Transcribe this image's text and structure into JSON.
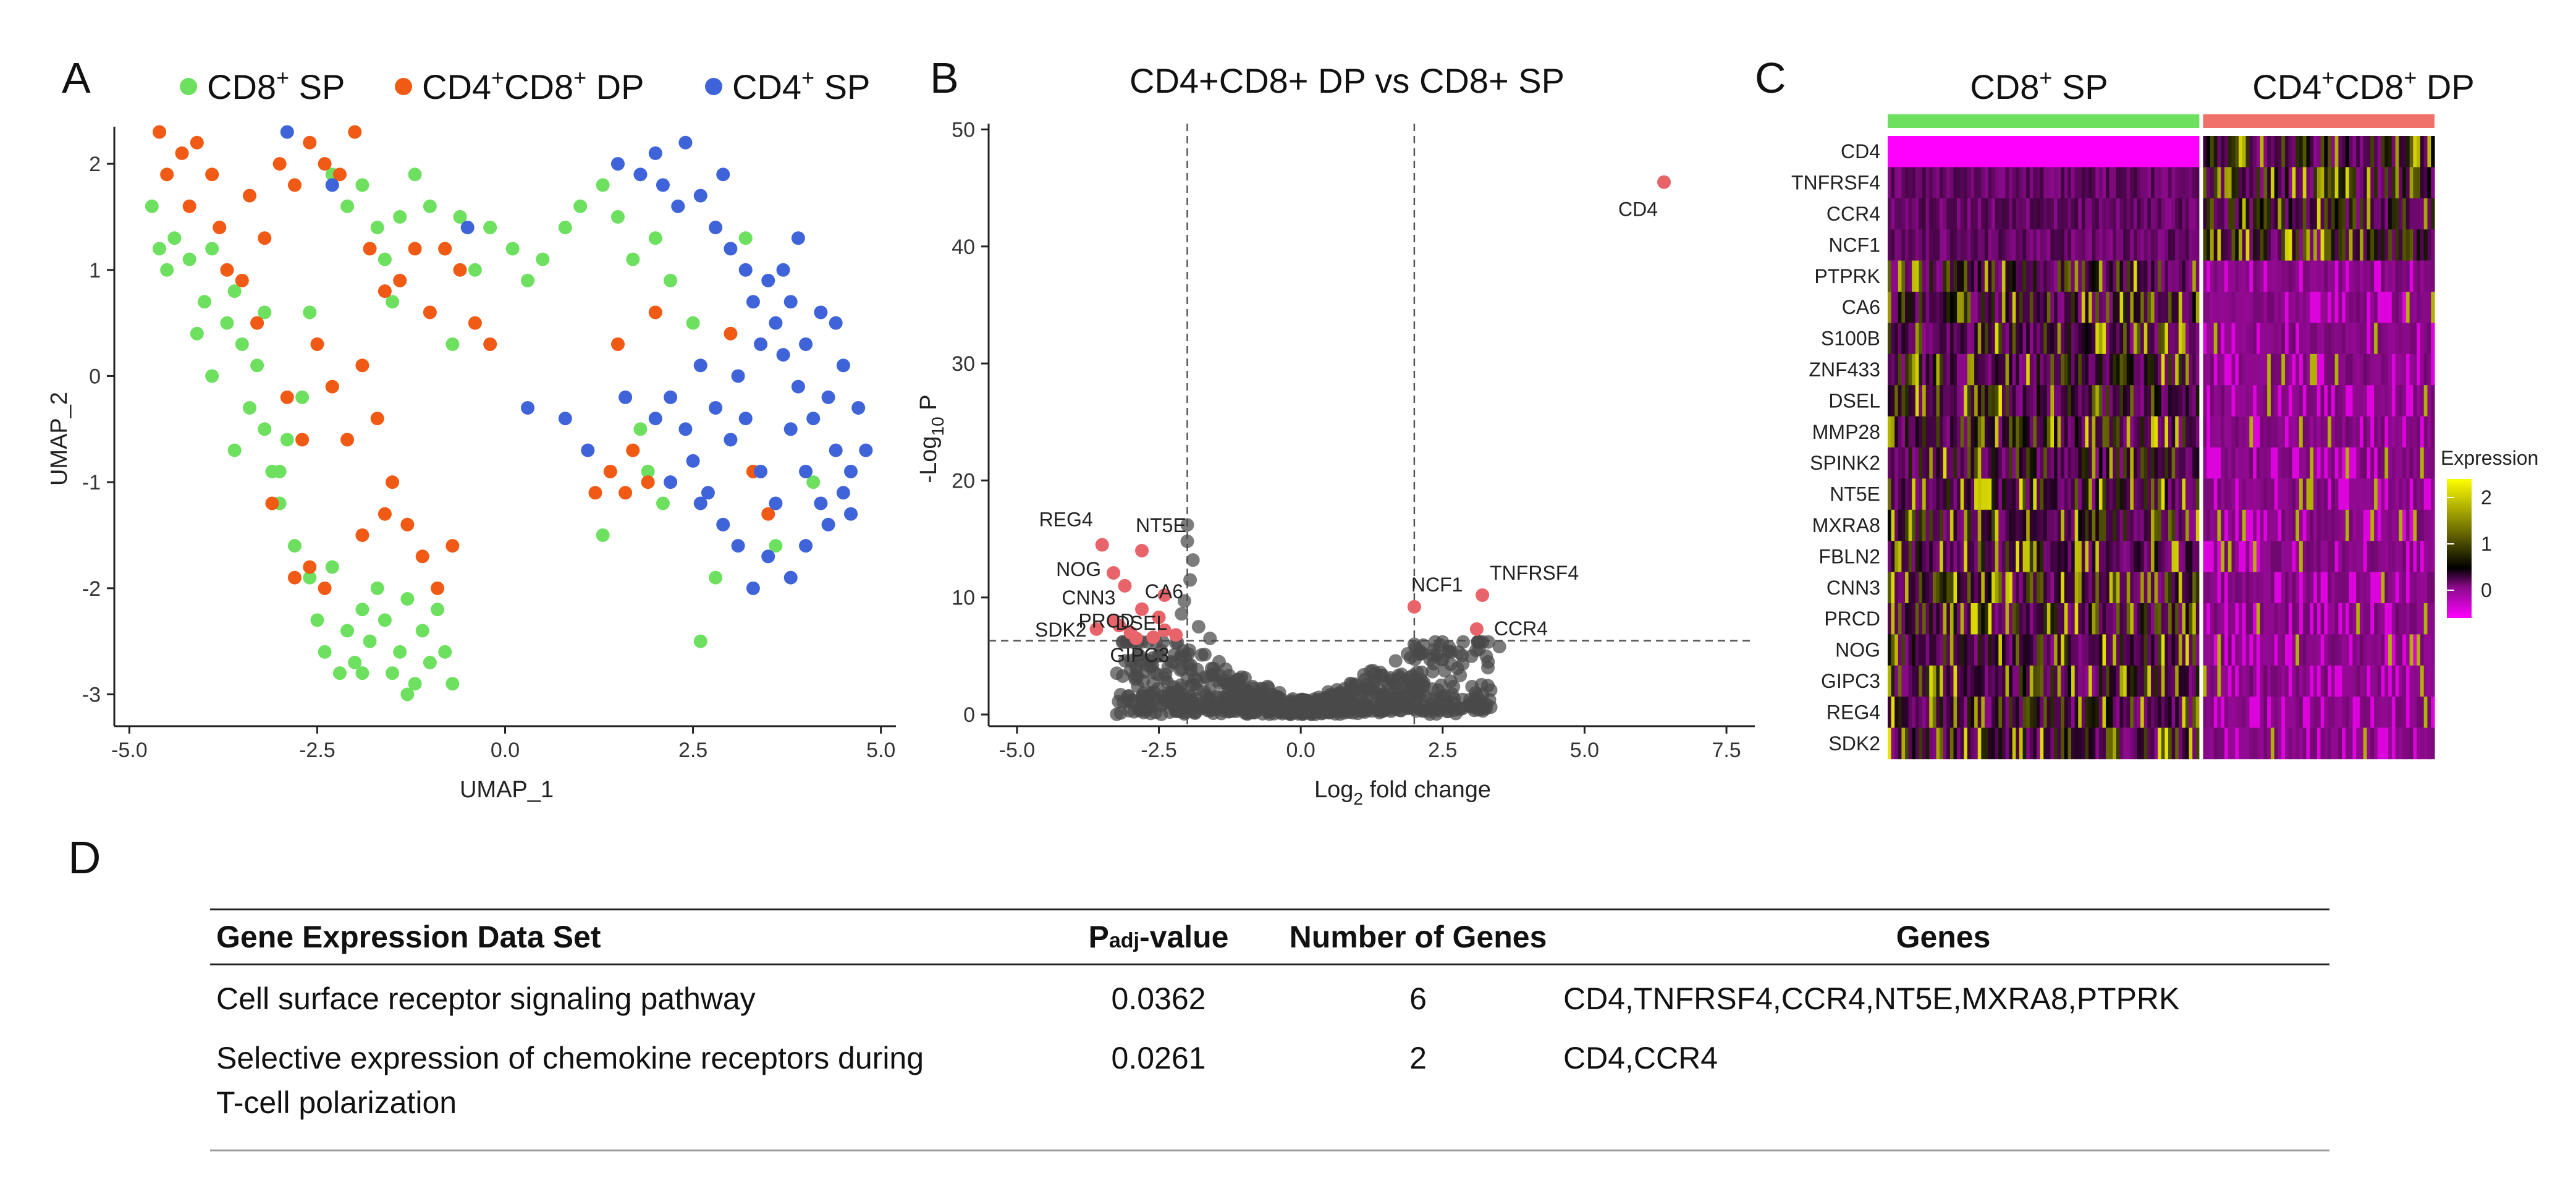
{
  "colors": {
    "cd8": "#6ee060",
    "dp": "#f05a14",
    "cd4": "#3f63d8",
    "sig": "#e8646a",
    "ns": "#4a4a4a"
  },
  "chart_data": [
    {
      "panel": "A",
      "type": "scatter",
      "title": "",
      "xlabel": "UMAP_1",
      "ylabel": "UMAP_2",
      "xlim": [
        -5.2,
        5.2
      ],
      "ylim": [
        -3.3,
        2.35
      ],
      "xticks": [
        "-5.0",
        "-2.5",
        "0.0",
        "2.5",
        "5.0"
      ],
      "xtick_values": [
        -5.0,
        -2.5,
        0.0,
        2.5,
        5.0
      ],
      "yticks": [
        "2",
        "1",
        "0",
        "-1",
        "-2",
        "-3"
      ],
      "ytick_values": [
        2,
        1,
        0,
        -1,
        -2,
        -3
      ],
      "legend": [
        {
          "base": "CD8",
          "sup": "+",
          "tail": " SP",
          "color": "#6ee060"
        },
        {
          "base": "CD4",
          "sup": "+",
          "mid": "CD8",
          "sup2": "+",
          "tail": " DP",
          "color": "#f05a14"
        },
        {
          "base": "CD4",
          "sup": "+",
          "tail": " SP",
          "color": "#3f63d8"
        }
      ],
      "series": [
        {
          "name": "CD8+ SP",
          "color": "#6ee060",
          "points": [
            [
              -4.7,
              1.6
            ],
            [
              -4.6,
              1.2
            ],
            [
              -4.4,
              1.3
            ],
            [
              -4.2,
              1.1
            ],
            [
              -4.0,
              0.7
            ],
            [
              -3.9,
              1.2
            ],
            [
              -3.7,
              0.5
            ],
            [
              -3.6,
              0.8
            ],
            [
              -3.5,
              0.3
            ],
            [
              -3.4,
              -0.3
            ],
            [
              -3.3,
              0.1
            ],
            [
              -3.2,
              -0.5
            ],
            [
              -3.1,
              -0.9
            ],
            [
              -3.0,
              -1.2
            ],
            [
              -2.9,
              -0.6
            ],
            [
              -2.8,
              -1.6
            ],
            [
              -2.7,
              -0.2
            ],
            [
              -2.6,
              -1.9
            ],
            [
              -2.5,
              -2.3
            ],
            [
              -2.4,
              -2.6
            ],
            [
              -2.3,
              -1.8
            ],
            [
              -2.2,
              -2.8
            ],
            [
              -2.1,
              -2.4
            ],
            [
              -2.0,
              -2.7
            ],
            [
              -1.9,
              -2.2
            ],
            [
              -1.8,
              -2.5
            ],
            [
              -1.7,
              -2.0
            ],
            [
              -1.6,
              -2.3
            ],
            [
              -1.5,
              -2.8
            ],
            [
              -1.4,
              -2.6
            ],
            [
              -1.3,
              -2.1
            ],
            [
              -1.2,
              -2.9
            ],
            [
              -1.1,
              -2.4
            ],
            [
              -1.0,
              -2.7
            ],
            [
              -0.9,
              -2.2
            ],
            [
              -0.8,
              -2.6
            ],
            [
              -0.7,
              -2.9
            ],
            [
              -1.3,
              -3.0
            ],
            [
              -1.9,
              -2.8
            ],
            [
              -3.9,
              0.0
            ],
            [
              -3.6,
              -0.7
            ],
            [
              -3.0,
              -0.9
            ],
            [
              -2.3,
              1.9
            ],
            [
              -2.1,
              1.6
            ],
            [
              -1.9,
              1.8
            ],
            [
              -1.7,
              1.4
            ],
            [
              -1.6,
              1.1
            ],
            [
              -1.4,
              1.5
            ],
            [
              -1.2,
              1.9
            ],
            [
              -1.0,
              1.6
            ],
            [
              -0.8,
              1.2
            ],
            [
              -0.6,
              1.5
            ],
            [
              -0.4,
              1.0
            ],
            [
              -0.2,
              1.4
            ],
            [
              0.1,
              1.2
            ],
            [
              0.3,
              0.9
            ],
            [
              0.5,
              1.1
            ],
            [
              0.8,
              1.4
            ],
            [
              1.0,
              1.6
            ],
            [
              1.3,
              1.8
            ],
            [
              1.5,
              1.5
            ],
            [
              1.7,
              1.1
            ],
            [
              2.0,
              1.3
            ],
            [
              2.2,
              0.9
            ],
            [
              1.8,
              -0.5
            ],
            [
              2.1,
              -1.2
            ],
            [
              2.6,
              -2.5
            ],
            [
              2.8,
              -1.9
            ],
            [
              3.2,
              1.3
            ],
            [
              3.6,
              -1.6
            ],
            [
              4.1,
              -1.0
            ],
            [
              -4.5,
              1.0
            ],
            [
              -3.2,
              0.6
            ],
            [
              -2.6,
              0.6
            ],
            [
              -4.1,
              0.4
            ],
            [
              -1.5,
              0.7
            ],
            [
              -0.7,
              0.3
            ],
            [
              1.3,
              -1.5
            ],
            [
              1.9,
              -0.9
            ],
            [
              2.5,
              0.5
            ]
          ]
        },
        {
          "name": "CD4+CD8+ DP",
          "color": "#f05a14",
          "points": [
            [
              -4.6,
              2.3
            ],
            [
              -4.5,
              1.9
            ],
            [
              -4.3,
              2.1
            ],
            [
              -4.1,
              2.2
            ],
            [
              -3.9,
              1.9
            ],
            [
              -3.8,
              1.4
            ],
            [
              -3.7,
              1.0
            ],
            [
              -3.5,
              0.9
            ],
            [
              -3.4,
              1.7
            ],
            [
              -3.2,
              1.3
            ],
            [
              -3.0,
              2.0
            ],
            [
              -2.8,
              1.8
            ],
            [
              -2.6,
              2.2
            ],
            [
              -2.4,
              2.0
            ],
            [
              -2.2,
              1.9
            ],
            [
              -2.0,
              2.3
            ],
            [
              -1.8,
              1.2
            ],
            [
              -1.6,
              0.8
            ],
            [
              -1.4,
              0.9
            ],
            [
              -1.2,
              1.2
            ],
            [
              -1.0,
              0.6
            ],
            [
              -0.8,
              1.2
            ],
            [
              -0.6,
              1.0
            ],
            [
              -0.4,
              0.5
            ],
            [
              -0.2,
              0.3
            ],
            [
              -2.9,
              -0.2
            ],
            [
              -2.7,
              -0.6
            ],
            [
              -2.5,
              0.3
            ],
            [
              -2.3,
              -0.1
            ],
            [
              -2.1,
              -0.6
            ],
            [
              -1.9,
              0.1
            ],
            [
              -1.7,
              -0.4
            ],
            [
              -1.5,
              -1.0
            ],
            [
              -1.3,
              -1.4
            ],
            [
              -1.1,
              -1.7
            ],
            [
              -0.9,
              -2.0
            ],
            [
              -0.7,
              -1.6
            ],
            [
              -2.6,
              -1.8
            ],
            [
              -2.4,
              -2.0
            ],
            [
              -2.8,
              -1.9
            ],
            [
              -3.1,
              -1.2
            ],
            [
              -1.6,
              -1.3
            ],
            [
              1.2,
              -1.1
            ],
            [
              1.4,
              -0.9
            ],
            [
              1.6,
              -1.1
            ],
            [
              1.7,
              -0.7
            ],
            [
              1.9,
              -1.0
            ],
            [
              1.5,
              0.3
            ],
            [
              2.0,
              0.6
            ],
            [
              3.0,
              0.4
            ],
            [
              3.3,
              -0.9
            ],
            [
              3.5,
              -1.3
            ],
            [
              -4.2,
              1.6
            ],
            [
              -3.3,
              0.5
            ],
            [
              -1.9,
              -1.5
            ]
          ]
        },
        {
          "name": "CD4+ SP",
          "color": "#3f63d8",
          "points": [
            [
              1.5,
              2.0
            ],
            [
              1.8,
              1.9
            ],
            [
              2.1,
              1.8
            ],
            [
              2.3,
              1.6
            ],
            [
              2.6,
              1.7
            ],
            [
              2.8,
              1.4
            ],
            [
              3.0,
              1.2
            ],
            [
              3.2,
              1.0
            ],
            [
              3.3,
              0.7
            ],
            [
              3.5,
              0.9
            ],
            [
              3.6,
              0.5
            ],
            [
              3.7,
              0.2
            ],
            [
              3.8,
              0.7
            ],
            [
              3.9,
              -0.1
            ],
            [
              4.0,
              0.3
            ],
            [
              4.1,
              -0.4
            ],
            [
              4.2,
              0.6
            ],
            [
              4.3,
              -0.2
            ],
            [
              4.4,
              -0.7
            ],
            [
              4.5,
              0.1
            ],
            [
              4.6,
              -0.9
            ],
            [
              4.7,
              -0.3
            ],
            [
              4.8,
              -0.7
            ],
            [
              4.5,
              -1.1
            ],
            [
              4.3,
              -1.4
            ],
            [
              4.0,
              -1.6
            ],
            [
              3.8,
              -1.9
            ],
            [
              3.5,
              -1.7
            ],
            [
              3.3,
              -2.0
            ],
            [
              3.1,
              -1.6
            ],
            [
              2.9,
              -1.4
            ],
            [
              2.7,
              -1.1
            ],
            [
              2.5,
              -0.8
            ],
            [
              2.4,
              -0.5
            ],
            [
              2.2,
              -0.2
            ],
            [
              2.6,
              0.1
            ],
            [
              2.8,
              -0.3
            ],
            [
              3.0,
              -0.6
            ],
            [
              3.2,
              -0.4
            ],
            [
              3.4,
              -0.9
            ],
            [
              3.6,
              -1.2
            ],
            [
              3.8,
              -0.5
            ],
            [
              4.0,
              -0.9
            ],
            [
              3.7,
              1.0
            ],
            [
              3.9,
              1.3
            ],
            [
              2.0,
              2.1
            ],
            [
              2.4,
              2.2
            ],
            [
              2.9,
              1.9
            ],
            [
              -2.9,
              2.3
            ],
            [
              -2.3,
              1.8
            ],
            [
              -0.5,
              1.4
            ],
            [
              0.3,
              -0.3
            ],
            [
              0.8,
              -0.4
            ],
            [
              1.1,
              -0.7
            ],
            [
              2.2,
              -1.0
            ],
            [
              2.6,
              -1.2
            ],
            [
              4.2,
              -1.2
            ],
            [
              4.6,
              -1.3
            ],
            [
              4.4,
              0.5
            ],
            [
              3.4,
              0.3
            ],
            [
              3.1,
              0.0
            ],
            [
              2.0,
              -0.4
            ],
            [
              1.6,
              -0.2
            ]
          ]
        }
      ]
    },
    {
      "panel": "B",
      "type": "scatter",
      "title": "CD4+CD8+ DP vs CD8+ SP",
      "xlabel_base": "Log",
      "xlabel_sub": "2",
      "xlabel_tail": " fold change",
      "ylabel_pre": "-Log",
      "ylabel_sub": "10",
      "ylabel_tail": " P",
      "xlim": [
        -5.5,
        8.0
      ],
      "ylim": [
        -1,
        50.5
      ],
      "xticks": [
        "-5.0",
        "-2.5",
        "0.0",
        "2.5",
        "5.0",
        "7.5"
      ],
      "xtick_values": [
        -5.0,
        -2.5,
        0.0,
        2.5,
        5.0,
        7.5
      ],
      "yticks": [
        "0",
        "10",
        "20",
        "30",
        "40",
        "50"
      ],
      "ytick_values": [
        0,
        10,
        20,
        30,
        40,
        50
      ],
      "thresholds": {
        "fc": [
          -2,
          2
        ],
        "p": 6.3
      },
      "labeled_points": [
        {
          "gene": "CD4",
          "x": 6.4,
          "y": 45.5
        },
        {
          "gene": "TNFRSF4",
          "x": 3.2,
          "y": 10.2
        },
        {
          "gene": "NCF1",
          "x": 2.0,
          "y": 9.2
        },
        {
          "gene": "CCR4",
          "x": 3.1,
          "y": 7.3
        },
        {
          "gene": "REG4",
          "x": -3.5,
          "y": 14.5
        },
        {
          "gene": "NT5E",
          "x": -2.8,
          "y": 14.0
        },
        {
          "gene": "NOG",
          "x": -3.3,
          "y": 12.1
        },
        {
          "gene": "CNN3",
          "x": -3.1,
          "y": 11.0
        },
        {
          "gene": "CA6",
          "x": -2.4,
          "y": 10.2
        },
        {
          "gene": "PRCD",
          "x": -2.8,
          "y": 9.0
        },
        {
          "gene": "DSEL",
          "x": -2.5,
          "y": 8.3
        },
        {
          "gene": "SDK2",
          "x": -3.6,
          "y": 7.3
        },
        {
          "gene": "GIPC3",
          "x": -2.6,
          "y": 6.6
        }
      ],
      "other_sig_points": [
        [
          -3.3,
          8.0
        ],
        [
          -3.0,
          7.0
        ],
        [
          -2.2,
          6.8
        ],
        [
          -2.4,
          7.2
        ],
        [
          -2.9,
          6.5
        ],
        [
          -3.2,
          7.6
        ]
      ],
      "ns_points_note": "dense cloud of non-significant genes centered near (0, 1)"
    },
    {
      "panel": "C",
      "type": "heatmap",
      "groups": [
        {
          "base": "CD8",
          "sup": "+",
          "tail": " SP",
          "color": "#6ee060",
          "n_cells": 90
        },
        {
          "base": "CD4",
          "sup": "+",
          "mid": "CD8",
          "sup2": "+",
          "tail": " DP",
          "color": "#f0706a",
          "n_cells": 65
        }
      ],
      "genes": [
        "CD4",
        "TNFRSF4",
        "CCR4",
        "NCF1",
        "PTPRK",
        "CA6",
        "S100B",
        "ZNF433",
        "DSEL",
        "MMP28",
        "SPINK2",
        "NT5E",
        "MXRA8",
        "FBLN2",
        "CNN3",
        "PRCD",
        "NOG",
        "GIPC3",
        "REG4",
        "SDK2"
      ],
      "up_in_dp": [
        "CD4",
        "TNFRSF4",
        "CCR4",
        "NCF1"
      ],
      "legend_title": "Expression",
      "legend_ticks": [
        "2",
        "1",
        "0"
      ],
      "legend_values": [
        2,
        1,
        0
      ],
      "range": [
        -0.6,
        2.4
      ]
    }
  ],
  "panel_labels": {
    "a": "A",
    "b": "B",
    "c": "C",
    "d": "D"
  },
  "table": {
    "headers": {
      "set": "Gene Expression Data Set",
      "p_main": "P",
      "p_sub": "adj",
      "p_tail": "-value",
      "n": "Number of Genes",
      "genes": "Genes"
    },
    "rows": [
      {
        "set_line1": "Cell surface receptor signaling pathway",
        "set_line2": "",
        "p": "0.0362",
        "n": "6",
        "genes": "CD4,TNFRSF4,CCR4,NT5E,MXRA8,PTPRK"
      },
      {
        "set_line1": "Selective expression of chemokine receptors during",
        "set_line2": "T-cell polarization",
        "p": "0.0261",
        "n": "2",
        "genes": "CD4,CCR4"
      }
    ]
  }
}
